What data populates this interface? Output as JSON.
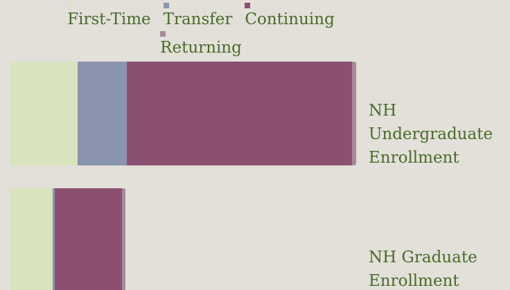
{
  "chart_data": {
    "type": "stacked_barh",
    "categories": [
      "NH Undergraduate Enrollment",
      "NH Graduate Enrollment"
    ],
    "series": [
      {
        "name": "First-Time",
        "color": "#d9e4bf",
        "values": [
          98,
          62
        ]
      },
      {
        "name": "Transfer",
        "color": "#8a94ac",
        "values": [
          71,
          3
        ]
      },
      {
        "name": "Continuing",
        "color": "#8b5070",
        "values": [
          325,
          97
        ]
      },
      {
        "name": "Returning",
        "color": "#a58a99",
        "values": [
          6,
          5
        ]
      }
    ],
    "xlim": [
      0,
      520
    ]
  }
}
